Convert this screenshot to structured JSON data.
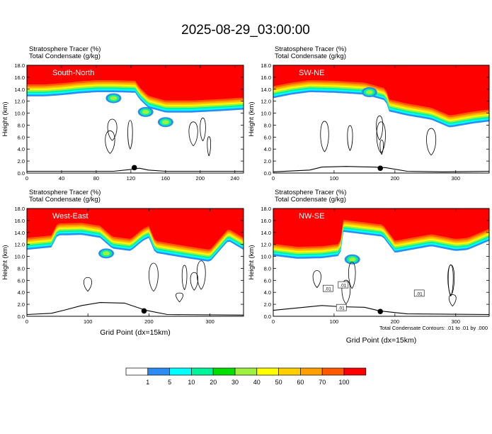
{
  "figure": {
    "title": "2025-08-29_03:00:00",
    "footnote": "Total Condensate Contours: .01 to .01 by .000",
    "shading_line1": "Stratosphere Tracer   (%)",
    "shading_line2": "Total Condensate   (g/kg)",
    "colors": {
      "shading": [
        "#ffffff",
        "#2b8cf4",
        "#00ffff",
        "#00f59a",
        "#00e000",
        "#a0f040",
        "#ffff00",
        "#ffd000",
        "#ffa000",
        "#ff5a00",
        "#ff0000"
      ],
      "axis": "#000000",
      "contour": "#000000"
    }
  },
  "colorbar": {
    "labels": [
      "1",
      "5",
      "10",
      "20",
      "30",
      "40",
      "50",
      "60",
      "70",
      "100"
    ]
  },
  "chart_data": [
    {
      "type": "heatmap",
      "name": "South-North",
      "ylabel": "Height (km)",
      "xlabel": "",
      "xlim": [
        0,
        250
      ],
      "ylim": [
        0,
        18
      ],
      "xticks": [
        "0",
        "40",
        "80",
        "120",
        "160",
        "200",
        "240"
      ],
      "yticks": [
        "0.0",
        "2.0",
        "4.0",
        "6.0",
        "8.0",
        "10.0",
        "12.0",
        "14.0",
        "16.0",
        "18.0"
      ],
      "tracer_base_km": [
        [
          0,
          13.7
        ],
        [
          20,
          13.7
        ],
        [
          40,
          13.9
        ],
        [
          60,
          14.2
        ],
        [
          80,
          14.4
        ],
        [
          100,
          14.4
        ],
        [
          125,
          14.3
        ],
        [
          130,
          13.2
        ],
        [
          140,
          11.8
        ],
        [
          160,
          11.0
        ],
        [
          190,
          11.0
        ],
        [
          230,
          11.3
        ],
        [
          250,
          11.5
        ]
      ],
      "secondary_blobs": [
        {
          "x": 100,
          "y": 12.5,
          "type": "tracer"
        },
        {
          "x": 160,
          "y": 8.5,
          "type": "tracer"
        },
        {
          "x": 137,
          "y": 10.2,
          "type": "tracer"
        }
      ],
      "terrain_km": [
        [
          0,
          0.3
        ],
        [
          100,
          0.3
        ],
        [
          120,
          0.6
        ],
        [
          130,
          0.8
        ],
        [
          140,
          0.5
        ],
        [
          160,
          0.3
        ],
        [
          250,
          0.3
        ]
      ],
      "marker": {
        "x": 124,
        "y": 0.9
      }
    },
    {
      "type": "heatmap",
      "name": "SW-NE",
      "ylabel": "Height (km)",
      "xlabel": "",
      "xlim": [
        0,
        355
      ],
      "ylim": [
        0,
        18
      ],
      "xticks": [
        "0",
        "100",
        "200",
        "300"
      ],
      "yticks": [
        "0.0",
        "2.0",
        "4.0",
        "6.0",
        "8.0",
        "10.0",
        "12.0",
        "14.0",
        "16.0",
        "18.0"
      ],
      "tracer_base_km": [
        [
          0,
          13.4
        ],
        [
          30,
          14.0
        ],
        [
          60,
          14.4
        ],
        [
          100,
          14.3
        ],
        [
          150,
          14.0
        ],
        [
          185,
          13.0
        ],
        [
          190,
          11.2
        ],
        [
          220,
          10.5
        ],
        [
          260,
          9.8
        ],
        [
          290,
          8.5
        ],
        [
          330,
          9.2
        ],
        [
          355,
          9.5
        ]
      ],
      "secondary_blobs": [
        {
          "x": 158,
          "y": 13.5,
          "type": "tracer"
        }
      ],
      "terrain_km": [
        [
          0,
          0.2
        ],
        [
          60,
          0.5
        ],
        [
          80,
          1.0
        ],
        [
          120,
          1.1
        ],
        [
          165,
          1.0
        ],
        [
          185,
          0.9
        ],
        [
          220,
          0.3
        ],
        [
          280,
          0.2
        ],
        [
          355,
          0.3
        ]
      ],
      "marker": {
        "x": 176,
        "y": 0.8
      }
    },
    {
      "type": "heatmap",
      "name": "West-East",
      "ylabel": "Height (km)",
      "xlabel": "Grid Point (dx=15km)",
      "xlim": [
        0,
        355
      ],
      "ylim": [
        0,
        18
      ],
      "xticks": [
        "0",
        "100",
        "200",
        "300"
      ],
      "yticks": [
        "0.0",
        "2.0",
        "4.0",
        "6.0",
        "8.0",
        "10.0",
        "12.0",
        "14.0",
        "16.0",
        "18.0"
      ],
      "tracer_base_km": [
        [
          0,
          12.0
        ],
        [
          40,
          12.4
        ],
        [
          50,
          14.4
        ],
        [
          90,
          14.5
        ],
        [
          120,
          14.0
        ],
        [
          140,
          12.2
        ],
        [
          170,
          11.8
        ],
        [
          190,
          13.5
        ],
        [
          200,
          14.0
        ],
        [
          210,
          11.5
        ],
        [
          250,
          10.8
        ],
        [
          300,
          10.0
        ],
        [
          330,
          13.5
        ],
        [
          355,
          12.0
        ]
      ],
      "secondary_blobs": [
        {
          "x": 130,
          "y": 10.5,
          "type": "tracer"
        }
      ],
      "terrain_km": [
        [
          0,
          0.3
        ],
        [
          40,
          0.5
        ],
        [
          60,
          1.0
        ],
        [
          90,
          1.8
        ],
        [
          120,
          2.3
        ],
        [
          160,
          2.2
        ],
        [
          195,
          1.0
        ],
        [
          230,
          0.3
        ],
        [
          355,
          0.2
        ]
      ],
      "marker": {
        "x": 192,
        "y": 0.9
      }
    },
    {
      "type": "heatmap",
      "name": "NW-SE",
      "ylabel": "Height (km)",
      "xlabel": "",
      "xlim": [
        0,
        355
      ],
      "ylim": [
        0,
        18
      ],
      "xticks": [
        "0",
        "100",
        "200",
        "300"
      ],
      "yticks": [
        "0.0",
        "2.0",
        "4.0",
        "6.0",
        "8.0",
        "10.0",
        "12.0",
        "14.0",
        "16.0",
        "18.0"
      ],
      "tracer_base_km": [
        [
          0,
          11.0
        ],
        [
          40,
          10.5
        ],
        [
          80,
          10.6
        ],
        [
          110,
          11.0
        ],
        [
          115,
          15.0
        ],
        [
          180,
          14.2
        ],
        [
          200,
          11.5
        ],
        [
          260,
          12.6
        ],
        [
          300,
          11.8
        ],
        [
          320,
          12.0
        ],
        [
          355,
          13.5
        ]
      ],
      "secondary_blobs": [
        {
          "x": 130,
          "y": 9.5,
          "type": "tracer"
        }
      ],
      "terrain_km": [
        [
          0,
          1.0
        ],
        [
          40,
          1.4
        ],
        [
          80,
          1.8
        ],
        [
          110,
          1.6
        ],
        [
          150,
          1.5
        ],
        [
          175,
          0.9
        ],
        [
          220,
          0.4
        ],
        [
          355,
          0.3
        ]
      ],
      "marker": {
        "x": 176,
        "y": 0.8
      },
      "contour_labels": [
        {
          "text": ".01",
          "x": 90,
          "y": 4.6
        },
        {
          "text": ".01",
          "x": 115,
          "y": 5.2
        },
        {
          "text": ".01",
          "x": 112,
          "y": 1.4
        },
        {
          "text": ".01",
          "x": 240,
          "y": 3.8
        }
      ]
    }
  ]
}
